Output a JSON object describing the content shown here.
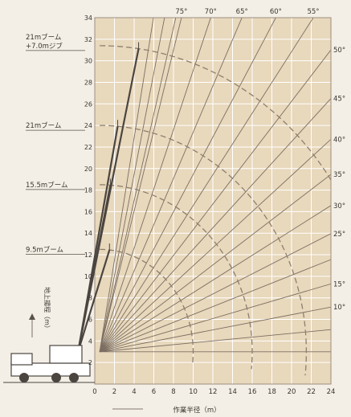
{
  "chart_data": {
    "type": "line",
    "title": "",
    "xlabel": "作業半径（m）",
    "ylabel": "地上揚程（m）",
    "xlim": [
      0,
      24
    ],
    "ylim": [
      0,
      34
    ],
    "x_ticks": [
      0,
      2,
      4,
      6,
      8,
      10,
      12,
      14,
      16,
      18,
      20,
      22,
      24
    ],
    "y_ticks": [
      0,
      2,
      4,
      6,
      8,
      10,
      12,
      14,
      16,
      18,
      20,
      22,
      24,
      26,
      28,
      30,
      32,
      34
    ],
    "grid": true,
    "boom_pivot": {
      "x": 0.5,
      "y": 3.0
    },
    "boom_lengths": [
      {
        "label": "9.5mブーム",
        "length": 9.5
      },
      {
        "label": "15.5mブーム",
        "length": 15.5
      },
      {
        "label": "21mブーム",
        "length": 21
      },
      {
        "label": "21mブーム\n+7.0mジブ",
        "length": 28.4
      }
    ],
    "boom_angles": [
      {
        "label": "75°",
        "angle": 75
      },
      {
        "label": "70°",
        "angle": 70
      },
      {
        "label": "65°",
        "angle": 65
      },
      {
        "label": "60°",
        "angle": 60
      },
      {
        "label": "55°",
        "angle": 55
      },
      {
        "label": "50°",
        "angle": 50
      },
      {
        "label": "45°",
        "angle": 45
      },
      {
        "label": "40°",
        "angle": 40
      },
      {
        "label": "35°",
        "angle": 35
      },
      {
        "label": "30°",
        "angle": 30
      },
      {
        "label": "25°",
        "angle": 25
      },
      {
        "label": "15°",
        "angle": 15
      },
      {
        "label": "10°",
        "angle": 10
      }
    ],
    "extra_angle_lines": [
      20,
      5,
      0,
      80,
      78,
      76
    ]
  },
  "colors": {
    "plot_background": "#e8d8bc",
    "grid": "#ffffff",
    "arc": "#8e7f6e",
    "angle_line": "#7b6e62",
    "text": "#3a3530",
    "truck": "#4b4540"
  }
}
